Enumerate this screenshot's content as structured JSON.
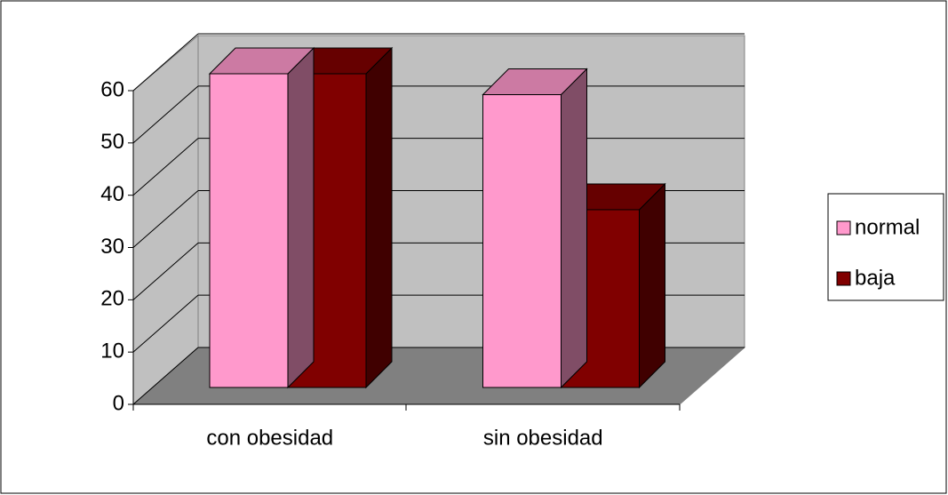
{
  "chart_data": {
    "type": "bar",
    "categories": [
      "con obesidad",
      "sin obesidad"
    ],
    "series": [
      {
        "name": "normal",
        "color": "#ff99cc",
        "values": [
          60,
          56
        ]
      },
      {
        "name": "baja",
        "color": "#800000",
        "values": [
          60,
          34
        ]
      }
    ],
    "ylim": [
      0,
      60
    ],
    "yticks": [
      0,
      10,
      20,
      30,
      40,
      50,
      60
    ],
    "grid": true,
    "legend": "right"
  }
}
